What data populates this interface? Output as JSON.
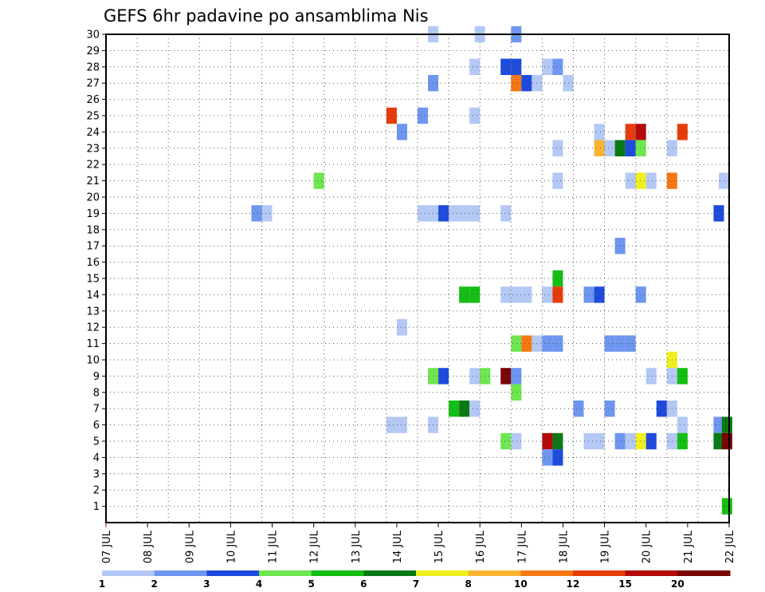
{
  "chart_data": {
    "type": "heatmap",
    "title": "GEFS 6hr padavine po ansamblima Nis",
    "x_tick_labels": [
      "07 JUL",
      "08 JUL",
      "09 JUL",
      "10 JUL",
      "11 JUL",
      "12 JUL",
      "13 JUL",
      "14 JUL",
      "15 JUL",
      "16 JUL",
      "17 JUL",
      "18 JUL",
      "19 JUL",
      "20 JUL",
      "21 JUL",
      "22 JUL"
    ],
    "y_tick_labels": [
      "1",
      "2",
      "3",
      "4",
      "5",
      "6",
      "7",
      "8",
      "9",
      "10",
      "11",
      "12",
      "13",
      "14",
      "15",
      "16",
      "17",
      "18",
      "19",
      "20",
      "21",
      "22",
      "23",
      "24",
      "25",
      "26",
      "27",
      "28",
      "29",
      "30"
    ],
    "xlim": [
      0,
      60
    ],
    "ylim": [
      0,
      30
    ],
    "grid": true,
    "colorbar": {
      "bins": [
        {
          "label": "1",
          "color": "#b4c8f5"
        },
        {
          "label": "2",
          "color": "#6e96f0"
        },
        {
          "label": "3",
          "color": "#1e4bdc"
        },
        {
          "label": "4",
          "color": "#6ee650"
        },
        {
          "label": "5",
          "color": "#14be14"
        },
        {
          "label": "6",
          "color": "#0a7814"
        },
        {
          "label": "7",
          "color": "#f0f01e"
        },
        {
          "label": "8",
          "color": "#fab432"
        },
        {
          "label": "10",
          "color": "#f57814"
        },
        {
          "label": "12",
          "color": "#e63c0a"
        },
        {
          "label": "15",
          "color": "#b40a0a"
        },
        {
          "label": "20",
          "color": "#780505"
        }
      ]
    },
    "cells_note": "each cell: [x in 6-hour steps from 07 JUL 00Z, ensemble member, precipitation class index 0-11 = colorbar bin]",
    "cells": [
      [
        31.5,
        30,
        0
      ],
      [
        36,
        30,
        0
      ],
      [
        39.5,
        30,
        1
      ],
      [
        35.5,
        28,
        0
      ],
      [
        38.5,
        28,
        2
      ],
      [
        39.5,
        28,
        2
      ],
      [
        42.5,
        28,
        0
      ],
      [
        43.5,
        28,
        1
      ],
      [
        31.5,
        27,
        1
      ],
      [
        39.5,
        27,
        8
      ],
      [
        40.5,
        27,
        2
      ],
      [
        41.5,
        27,
        0
      ],
      [
        44.5,
        27,
        0
      ],
      [
        27.5,
        25,
        9
      ],
      [
        30.5,
        25,
        1
      ],
      [
        35.5,
        25,
        0
      ],
      [
        28.5,
        24,
        1
      ],
      [
        47.5,
        24,
        0
      ],
      [
        50.5,
        24,
        9
      ],
      [
        51.5,
        24,
        10
      ],
      [
        55.5,
        24,
        9
      ],
      [
        43.5,
        23,
        0
      ],
      [
        47.5,
        23,
        7
      ],
      [
        48.5,
        23,
        0
      ],
      [
        49.5,
        23,
        5
      ],
      [
        50.5,
        23,
        2
      ],
      [
        51.5,
        23,
        3
      ],
      [
        54.5,
        23,
        0
      ],
      [
        20.5,
        21,
        3
      ],
      [
        43.5,
        21,
        0
      ],
      [
        50.5,
        21,
        0
      ],
      [
        51.5,
        21,
        6
      ],
      [
        52.5,
        21,
        0
      ],
      [
        54.5,
        21,
        8
      ],
      [
        59.5,
        21,
        0
      ],
      [
        14.5,
        19,
        1
      ],
      [
        15.5,
        19,
        0
      ],
      [
        30.5,
        19,
        0
      ],
      [
        31.5,
        19,
        0
      ],
      [
        32.5,
        19,
        2
      ],
      [
        33.5,
        19,
        0
      ],
      [
        34.5,
        19,
        0
      ],
      [
        35.5,
        19,
        0
      ],
      [
        38.5,
        19,
        0
      ],
      [
        59,
        19,
        2
      ],
      [
        49.5,
        17,
        1
      ],
      [
        43.5,
        15,
        4
      ],
      [
        34.5,
        14,
        4
      ],
      [
        35.5,
        14,
        4
      ],
      [
        38.5,
        14,
        0
      ],
      [
        39.5,
        14,
        0
      ],
      [
        40.5,
        14,
        0
      ],
      [
        42.5,
        14,
        0
      ],
      [
        43.5,
        14,
        9
      ],
      [
        46.5,
        14,
        1
      ],
      [
        47.5,
        14,
        2
      ],
      [
        51.5,
        14,
        1
      ],
      [
        28.5,
        12,
        0
      ],
      [
        39.5,
        11,
        3
      ],
      [
        40.5,
        11,
        8
      ],
      [
        41.5,
        11,
        0
      ],
      [
        42.5,
        11,
        1
      ],
      [
        43.5,
        11,
        1
      ],
      [
        48.5,
        11,
        1
      ],
      [
        49.5,
        11,
        1
      ],
      [
        50.5,
        11,
        1
      ],
      [
        54.5,
        10,
        6
      ],
      [
        31.5,
        9,
        3
      ],
      [
        32.5,
        9,
        2
      ],
      [
        35.5,
        9,
        0
      ],
      [
        36.5,
        9,
        3
      ],
      [
        38.5,
        9,
        11
      ],
      [
        39.5,
        9,
        1
      ],
      [
        52.5,
        9,
        0
      ],
      [
        54.5,
        9,
        0
      ],
      [
        55.5,
        9,
        4
      ],
      [
        39.5,
        8,
        3
      ],
      [
        33.5,
        7,
        4
      ],
      [
        34.5,
        7,
        5
      ],
      [
        35.5,
        7,
        0
      ],
      [
        45.5,
        7,
        1
      ],
      [
        48.5,
        7,
        1
      ],
      [
        53.5,
        7,
        2
      ],
      [
        54.5,
        7,
        0
      ],
      [
        27.5,
        6,
        0
      ],
      [
        28.5,
        6,
        0
      ],
      [
        31.5,
        6,
        0
      ],
      [
        55.5,
        6,
        0
      ],
      [
        59,
        6,
        1
      ],
      [
        59.8,
        6,
        5
      ],
      [
        38.5,
        5,
        3
      ],
      [
        39.5,
        5,
        0
      ],
      [
        42.5,
        5,
        10
      ],
      [
        43.5,
        5,
        5
      ],
      [
        46.5,
        5,
        0
      ],
      [
        47.5,
        5,
        0
      ],
      [
        49.5,
        5,
        1
      ],
      [
        50.5,
        5,
        0
      ],
      [
        51.5,
        5,
        6
      ],
      [
        52.5,
        5,
        2
      ],
      [
        54.5,
        5,
        0
      ],
      [
        55.5,
        5,
        4
      ],
      [
        59,
        5,
        5
      ],
      [
        59.8,
        5,
        11
      ],
      [
        42.5,
        4,
        1
      ],
      [
        43.5,
        4,
        2
      ],
      [
        59.8,
        1,
        4
      ]
    ]
  }
}
